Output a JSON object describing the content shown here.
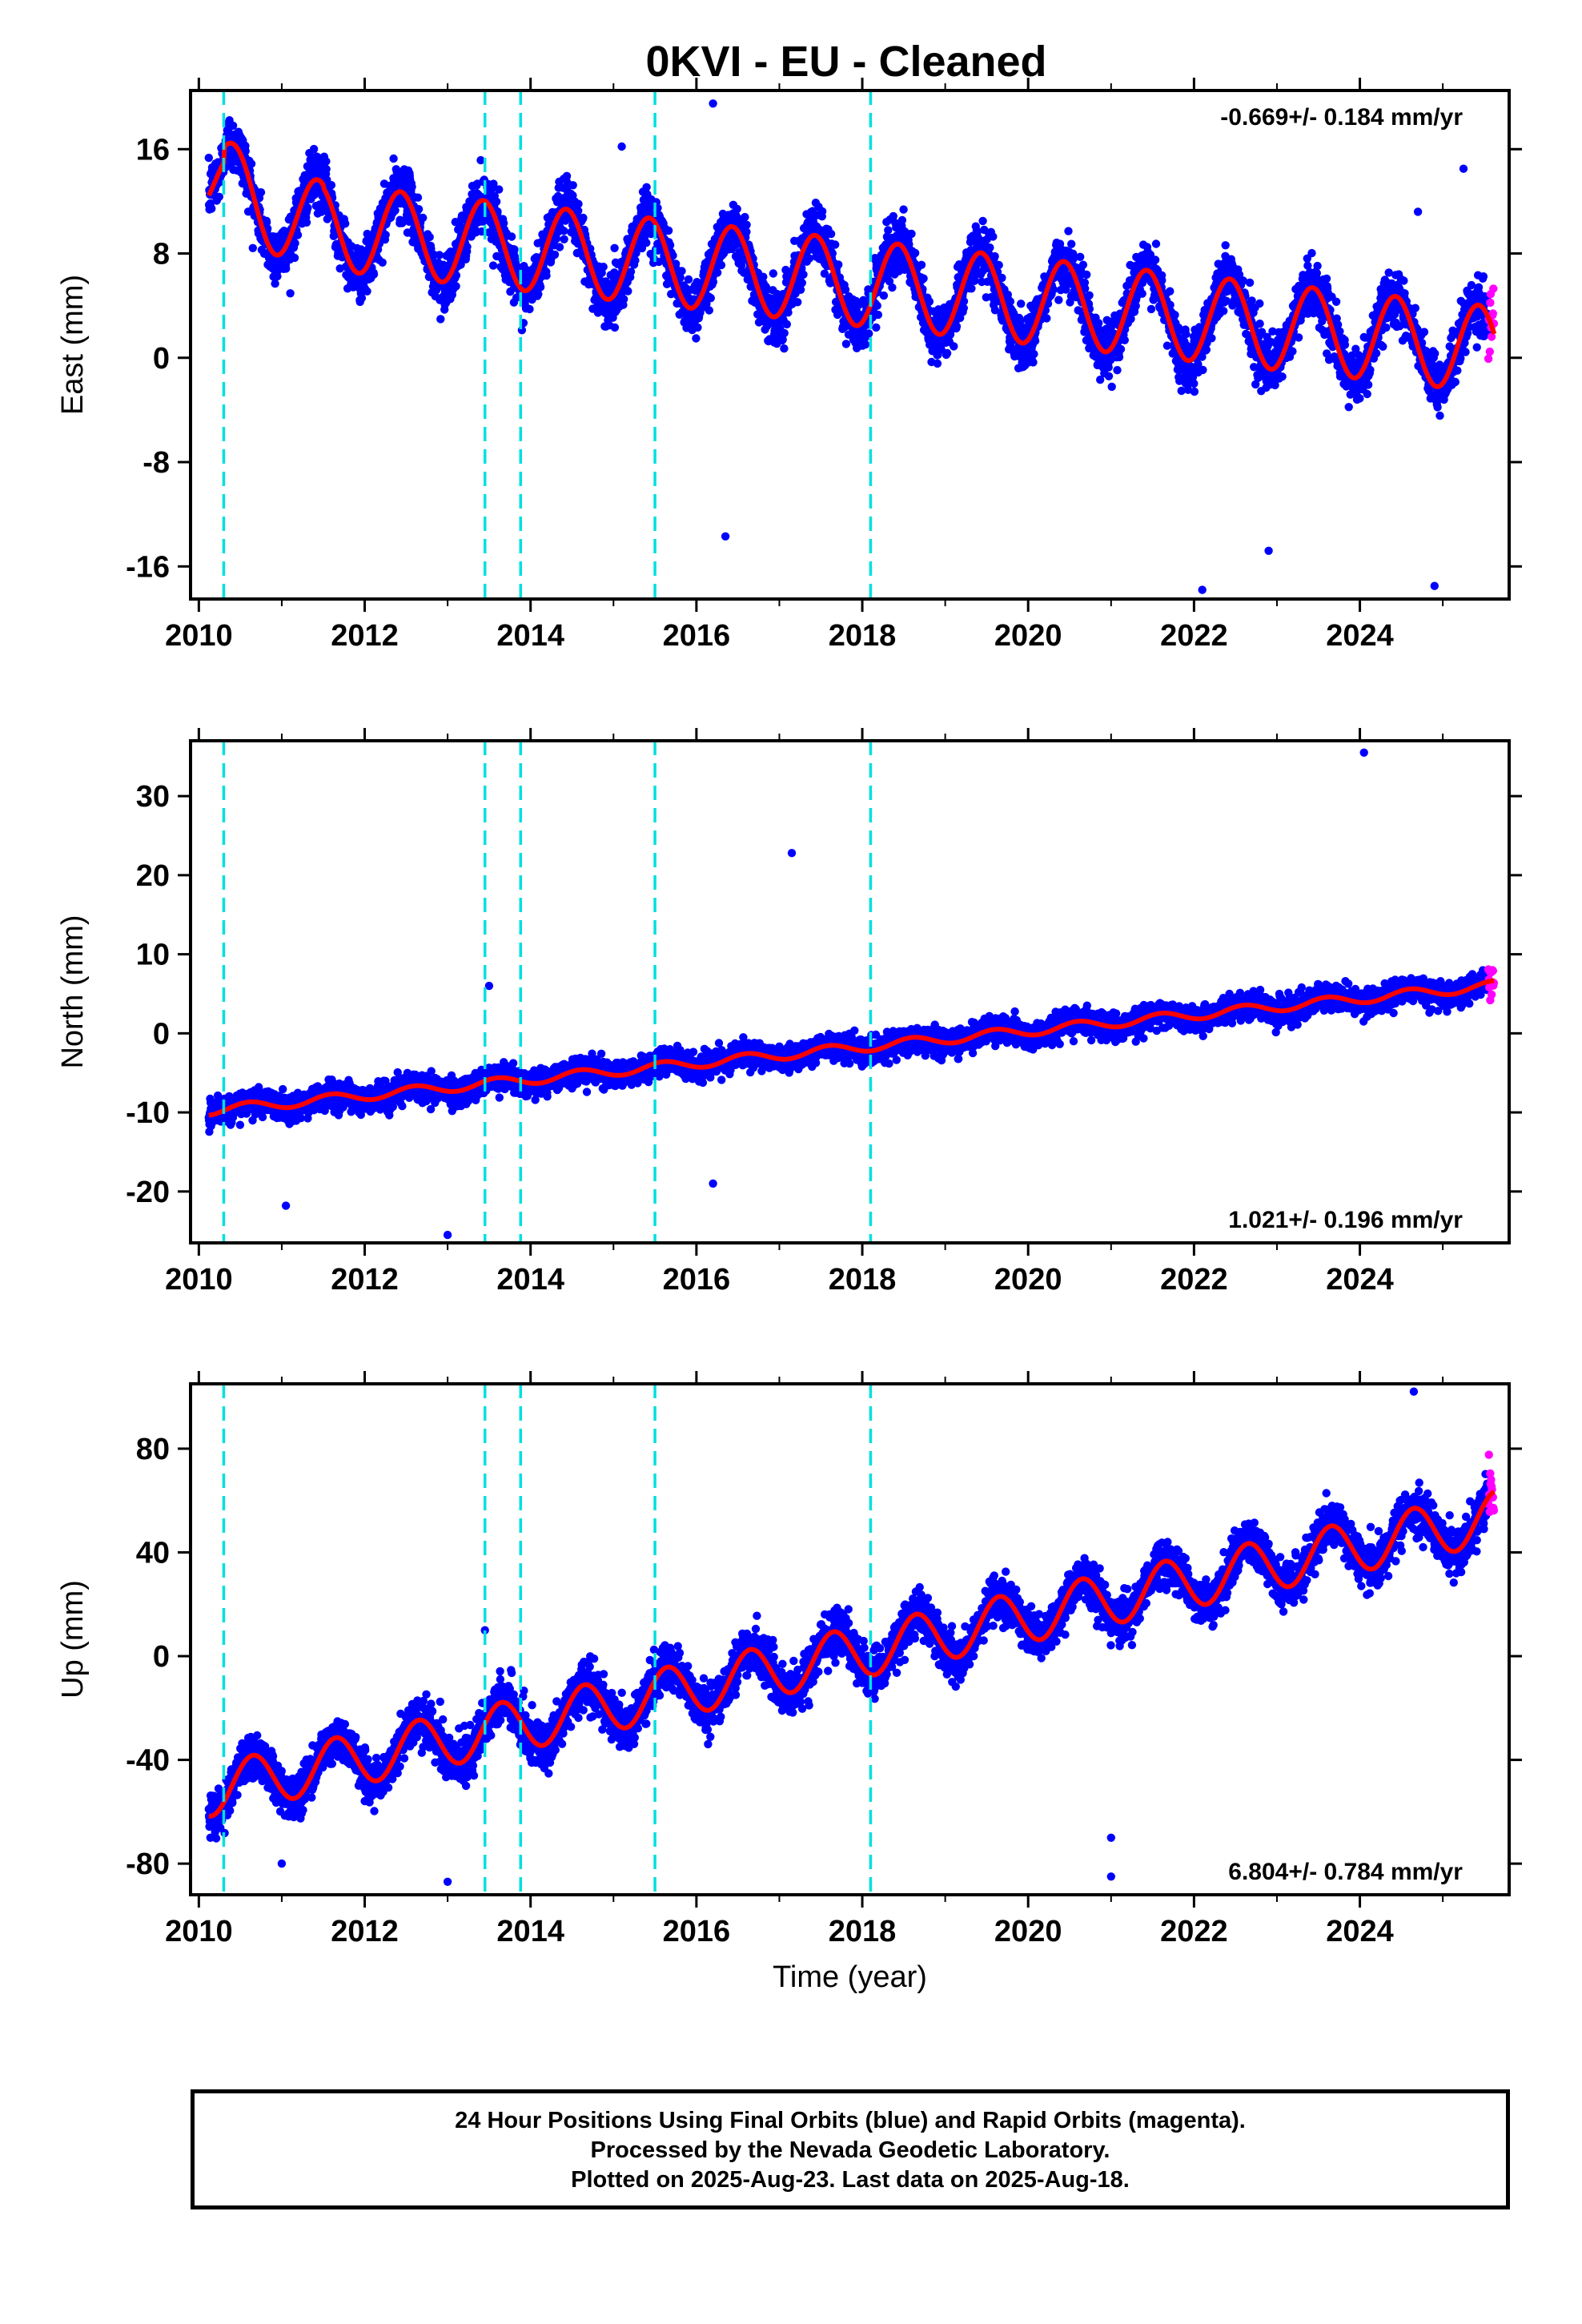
{
  "title": "0KVI  - EU - Cleaned",
  "colors": {
    "final_orbits": "#0000ff",
    "rapid_orbits": "#ff00ff",
    "model_fit": "#ff0000",
    "equipment_change": "#00e0e0"
  },
  "chart_data": [
    {
      "type": "scatter",
      "component": "East",
      "ylabel": "East (mm)",
      "xlabel": "",
      "xlim": [
        2009.9,
        2025.8
      ],
      "ylim": [
        -18.5,
        20.5
      ],
      "xticks": [
        "2010",
        "2012",
        "2014",
        "2016",
        "2018",
        "2020",
        "2022",
        "2024"
      ],
      "yticks": [
        "16",
        "8",
        "0",
        "-8",
        "-16"
      ],
      "ytick_values": [
        16,
        8,
        0,
        -8,
        -16
      ],
      "rate_label": "-0.669+/- 0.184 mm/yr",
      "rate_position": "top-right",
      "steps": [
        2010.3,
        2013.45,
        2013.88,
        2015.5,
        2018.1
      ],
      "model": {
        "offset": 11,
        "slope": -0.669,
        "seasonal_amplitude": 3.3,
        "phase_peak": 0.43
      },
      "series": [
        {
          "name": "Final Orbits (blue)",
          "x_range": [
            2010.12,
            2025.55
          ],
          "scatter_sd": 1.6
        },
        {
          "name": "Rapid Orbits (magenta)",
          "x_range": [
            2025.55,
            2025.62
          ]
        }
      ],
      "outliers": [
        [
          2016.2,
          19.5
        ],
        [
          2015.1,
          16.2
        ],
        [
          2025.25,
          14.5
        ],
        [
          2024.7,
          11.2
        ],
        [
          2016.35,
          -13.7
        ],
        [
          2022.1,
          -17.8
        ],
        [
          2024.9,
          -17.5
        ],
        [
          2022.9,
          -14.8
        ]
      ]
    },
    {
      "type": "scatter",
      "component": "North",
      "ylabel": "North (mm)",
      "xlabel": "",
      "xlim": [
        2009.9,
        2025.8
      ],
      "ylim": [
        -26.5,
        37
      ],
      "xticks": [
        "2010",
        "2012",
        "2014",
        "2016",
        "2018",
        "2020",
        "2022",
        "2024"
      ],
      "yticks": [
        "30",
        "20",
        "10",
        "0",
        "-10",
        "-20"
      ],
      "ytick_values": [
        30,
        20,
        10,
        0,
        -10,
        -20
      ],
      "rate_label": "1.021+/- 0.196 mm/yr",
      "rate_position": "bottom-right",
      "steps": [
        2010.3,
        2013.45,
        2013.88,
        2015.5,
        2018.1
      ],
      "model": {
        "offset": -9.8,
        "slope": 1.021,
        "seasonal_amplitude": 0.6,
        "phase_peak": 0.6
      },
      "series": [
        {
          "name": "Final Orbits (blue)",
          "x_range": [
            2010.12,
            2025.55
          ],
          "scatter_sd": 1.2
        },
        {
          "name": "Rapid Orbits (magenta)",
          "x_range": [
            2025.55,
            2025.62
          ]
        }
      ],
      "outliers": [
        [
          2024.05,
          35.5
        ],
        [
          2017.15,
          22.8
        ],
        [
          2013.5,
          6
        ],
        [
          2016.2,
          -19
        ],
        [
          2013.0,
          -25.5
        ],
        [
          2011.05,
          -21.8
        ]
      ]
    },
    {
      "type": "scatter",
      "component": "Up",
      "ylabel": "Up (mm)",
      "xlabel": "Time (year)",
      "xlim": [
        2009.9,
        2025.8
      ],
      "ylim": [
        -92,
        105
      ],
      "xticks": [
        "2010",
        "2012",
        "2014",
        "2016",
        "2018",
        "2020",
        "2022",
        "2024"
      ],
      "yticks": [
        "80",
        "40",
        "0",
        "-40",
        "-80"
      ],
      "ytick_values": [
        80,
        40,
        0,
        -40,
        -80
      ],
      "rate_label": "6.804+/- 0.784 mm/yr",
      "rate_position": "bottom-right",
      "steps": [
        2010.3,
        2013.45,
        2013.88,
        2015.5,
        2018.1
      ],
      "model": {
        "offset": -52,
        "slope": 6.804,
        "seasonal_amplitude": 10,
        "phase_peak": 0.65
      },
      "series": [
        {
          "name": "Final Orbits (blue)",
          "x_range": [
            2010.12,
            2025.55
          ],
          "scatter_sd": 6.5
        },
        {
          "name": "Rapid Orbits (magenta)",
          "x_range": [
            2025.55,
            2025.62
          ]
        }
      ],
      "outliers": [
        [
          2024.65,
          102
        ],
        [
          2013.45,
          10
        ],
        [
          2021.0,
          -85
        ],
        [
          2013.0,
          -87
        ],
        [
          2021.0,
          -70
        ],
        [
          2011.0,
          -80
        ]
      ]
    }
  ],
  "footer": {
    "line1": "24 Hour Positions Using Final Orbits (blue) and Rapid Orbits (magenta).",
    "line2": "Processed by the Nevada Geodetic Laboratory.",
    "line3": "Plotted on 2025-Aug-23. Last data on 2025-Aug-18."
  }
}
